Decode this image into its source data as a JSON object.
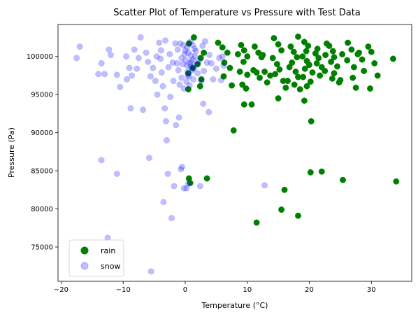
{
  "chart_data": {
    "type": "scatter",
    "title": "Scatter Plot of Temperature vs Pressure with Test Data",
    "xlabel": "Temperature (°C)",
    "ylabel": "Pressure (Pa)",
    "xlim": [
      -20.5,
      36.5
    ],
    "ylim": [
      70500,
      104200
    ],
    "xticks": [
      -20,
      -10,
      0,
      10,
      20,
      30
    ],
    "yticks": [
      75000,
      80000,
      85000,
      90000,
      95000,
      100000
    ],
    "grid": false,
    "legend": "lower-left",
    "series": [
      {
        "name": "rain",
        "color": "#008000",
        "opacity": 1.0,
        "points": [
          [
            1.4,
            102500
          ],
          [
            0.6,
            101700
          ],
          [
            3.0,
            100500
          ],
          [
            2.5,
            99800
          ],
          [
            2.0,
            99000
          ],
          [
            1.2,
            98500
          ],
          [
            0.5,
            97800
          ],
          [
            2.6,
            97000
          ],
          [
            2.4,
            96100
          ],
          [
            0.5,
            95700
          ],
          [
            0.6,
            84000
          ],
          [
            0.8,
            83400
          ],
          [
            3.5,
            84000
          ],
          [
            5.3,
            101800
          ],
          [
            6.0,
            101200
          ],
          [
            6.8,
            100500
          ],
          [
            6.3,
            99200
          ],
          [
            7.2,
            98500
          ],
          [
            6.2,
            97400
          ],
          [
            7.5,
            96200
          ],
          [
            7.8,
            90300
          ],
          [
            8.5,
            100300
          ],
          [
            9.0,
            101500
          ],
          [
            9.5,
            100800
          ],
          [
            10.0,
            100000
          ],
          [
            9.4,
            99300
          ],
          [
            8.8,
            98000
          ],
          [
            10.0,
            97600
          ],
          [
            9.2,
            96300
          ],
          [
            9.8,
            95800
          ],
          [
            9.5,
            93700
          ],
          [
            10.7,
            93700
          ],
          [
            11.2,
            101300
          ],
          [
            11.8,
            100500
          ],
          [
            12.3,
            99900
          ],
          [
            11.0,
            98200
          ],
          [
            11.5,
            97900
          ],
          [
            12.0,
            97200
          ],
          [
            12.8,
            98000
          ],
          [
            13.2,
            96600
          ],
          [
            13.7,
            97500
          ],
          [
            12.5,
            100200
          ],
          [
            11.5,
            78200
          ],
          [
            14.3,
            102400
          ],
          [
            15.0,
            101600
          ],
          [
            15.5,
            100800
          ],
          [
            14.1,
            99800
          ],
          [
            14.8,
            99000
          ],
          [
            15.2,
            98300
          ],
          [
            14.5,
            97700
          ],
          [
            15.8,
            96800
          ],
          [
            16.2,
            95900
          ],
          [
            15.0,
            94500
          ],
          [
            16.0,
            82500
          ],
          [
            15.5,
            79900
          ],
          [
            17.0,
            101300
          ],
          [
            17.5,
            100600
          ],
          [
            18.0,
            99900
          ],
          [
            17.2,
            99200
          ],
          [
            16.8,
            98600
          ],
          [
            17.8,
            98000
          ],
          [
            18.2,
            97300
          ],
          [
            16.5,
            96800
          ],
          [
            17.6,
            96300
          ],
          [
            18.5,
            95700
          ],
          [
            18.2,
            102600
          ],
          [
            18.2,
            79100
          ],
          [
            19.2,
            101900
          ],
          [
            19.8,
            101400
          ],
          [
            19.5,
            100700
          ],
          [
            18.9,
            100000
          ],
          [
            19.6,
            99400
          ],
          [
            20.0,
            98900
          ],
          [
            19.3,
            98400
          ],
          [
            20.5,
            97900
          ],
          [
            19.0,
            97300
          ],
          [
            20.2,
            96700
          ],
          [
            19.6,
            96100
          ],
          [
            19.2,
            94200
          ],
          [
            20.3,
            91500
          ],
          [
            20.2,
            84800
          ],
          [
            21.0,
            100400
          ],
          [
            21.5,
            99800
          ],
          [
            21.2,
            99100
          ],
          [
            22.0,
            98600
          ],
          [
            22.5,
            98100
          ],
          [
            21.7,
            97500
          ],
          [
            22.8,
            101700
          ],
          [
            21.3,
            101000
          ],
          [
            22.6,
            100200
          ],
          [
            22.0,
            84900
          ],
          [
            23.2,
            101400
          ],
          [
            23.8,
            100700
          ],
          [
            24.0,
            99900
          ],
          [
            23.5,
            99300
          ],
          [
            24.5,
            98700
          ],
          [
            24.0,
            97800
          ],
          [
            23.7,
            97100
          ],
          [
            24.8,
            96600
          ],
          [
            25.3,
            100300
          ],
          [
            25.0,
            96900
          ],
          [
            25.4,
            83800
          ],
          [
            26.2,
            101800
          ],
          [
            26.8,
            100900
          ],
          [
            26.1,
            99500
          ],
          [
            27.2,
            98600
          ],
          [
            27.0,
            97200
          ],
          [
            27.5,
            95900
          ],
          [
            28.0,
            100500
          ],
          [
            28.5,
            99600
          ],
          [
            28.8,
            98100
          ],
          [
            27.8,
            100300
          ],
          [
            29.5,
            101300
          ],
          [
            30.0,
            100600
          ],
          [
            30.5,
            99100
          ],
          [
            29.8,
            95800
          ],
          [
            31.0,
            97500
          ],
          [
            33.5,
            99700
          ],
          [
            34.0,
            83600
          ]
        ]
      },
      {
        "name": "snow",
        "color": "#0000ff",
        "opacity": 0.25,
        "points": [
          [
            -17.5,
            99800
          ],
          [
            -17.0,
            101300
          ],
          [
            -14.0,
            97700
          ],
          [
            -13.5,
            99100
          ],
          [
            -13.0,
            97700
          ],
          [
            -12.3,
            100900
          ],
          [
            -12.0,
            100200
          ],
          [
            -13.5,
            86400
          ],
          [
            -11.0,
            84600
          ],
          [
            -12.5,
            76200
          ],
          [
            -11.0,
            97600
          ],
          [
            -10.5,
            96000
          ],
          [
            -9.5,
            100000
          ],
          [
            -9.0,
            98500
          ],
          [
            -8.6,
            97500
          ],
          [
            -8.8,
            93200
          ],
          [
            -7.5,
            99800
          ],
          [
            -7.2,
            102500
          ],
          [
            -6.8,
            93000
          ],
          [
            -6.3,
            100500
          ],
          [
            -6.0,
            99300
          ],
          [
            -5.8,
            86700
          ],
          [
            -5.5,
            71800
          ],
          [
            -7.8,
            98400
          ],
          [
            -8.2,
            100900
          ],
          [
            -9.4,
            97000
          ],
          [
            -5.2,
            98500
          ],
          [
            -4.8,
            96800
          ],
          [
            -4.5,
            95000
          ],
          [
            -4.2,
            101800
          ],
          [
            -4.0,
            99700
          ],
          [
            -3.8,
            97900
          ],
          [
            -3.6,
            96100
          ],
          [
            -3.3,
            93200
          ],
          [
            -3.1,
            91500
          ],
          [
            -3.0,
            89000
          ],
          [
            -3.5,
            80900
          ],
          [
            -2.8,
            84600
          ],
          [
            -2.2,
            78800
          ],
          [
            -1.8,
            83000
          ],
          [
            -1.5,
            91000
          ],
          [
            -1.3,
            99100
          ],
          [
            -1.0,
            92000
          ],
          [
            -0.7,
            85200
          ],
          [
            -0.5,
            85500
          ],
          [
            -0.2,
            82700
          ],
          [
            -2.5,
            100300
          ],
          [
            -2.0,
            99200
          ],
          [
            -1.2,
            100900
          ],
          [
            -0.6,
            97200
          ],
          [
            -2.7,
            98600
          ],
          [
            -3.9,
            100800
          ],
          [
            -1.6,
            101700
          ],
          [
            -0.9,
            96300
          ],
          [
            -2.4,
            94700
          ],
          [
            -1.9,
            96800
          ],
          [
            -4.6,
            100000
          ],
          [
            -5.6,
            97400
          ],
          [
            -3.2,
            102100
          ],
          [
            -0.3,
            101500
          ],
          [
            -0.1,
            100300
          ],
          [
            0.1,
            99500
          ],
          [
            0.3,
            98800
          ],
          [
            0.4,
            98000
          ],
          [
            0.6,
            97400
          ],
          [
            0.2,
            96700
          ],
          [
            -0.2,
            95800
          ],
          [
            0.8,
            101900
          ],
          [
            0.9,
            100100
          ],
          [
            1.0,
            99300
          ],
          [
            1.1,
            98200
          ],
          [
            1.3,
            97000
          ],
          [
            0.7,
            96200
          ],
          [
            1.5,
            101000
          ],
          [
            1.6,
            100000
          ],
          [
            1.8,
            98900
          ],
          [
            2.0,
            97800
          ],
          [
            1.2,
            99600
          ],
          [
            0.0,
            100800
          ],
          [
            -0.4,
            99000
          ],
          [
            1.4,
            98400
          ],
          [
            0.5,
            100500
          ],
          [
            0.9,
            98700
          ],
          [
            0.3,
            101200
          ],
          [
            1.7,
            100700
          ],
          [
            2.2,
            99400
          ],
          [
            2.8,
            101400
          ],
          [
            3.2,
            102000
          ],
          [
            3.5,
            99200
          ],
          [
            3.0,
            98100
          ],
          [
            2.6,
            96800
          ],
          [
            2.9,
            93800
          ],
          [
            3.8,
            92700
          ],
          [
            2.4,
            83000
          ],
          [
            0.2,
            82700
          ],
          [
            0.5,
            83300
          ],
          [
            3.9,
            100200
          ],
          [
            4.2,
            99100
          ],
          [
            5.0,
            98400
          ],
          [
            5.5,
            99800
          ],
          [
            6.0,
            100000
          ],
          [
            5.8,
            96900
          ],
          [
            4.5,
            97000
          ],
          [
            6.2,
            98800
          ],
          [
            12.8,
            83100
          ],
          [
            -0.8,
            101700
          ],
          [
            -1.1,
            98200
          ],
          [
            0.4,
            97500
          ],
          [
            1.2,
            101500
          ],
          [
            -0.6,
            99800
          ],
          [
            0.7,
            99100
          ]
        ]
      }
    ]
  }
}
